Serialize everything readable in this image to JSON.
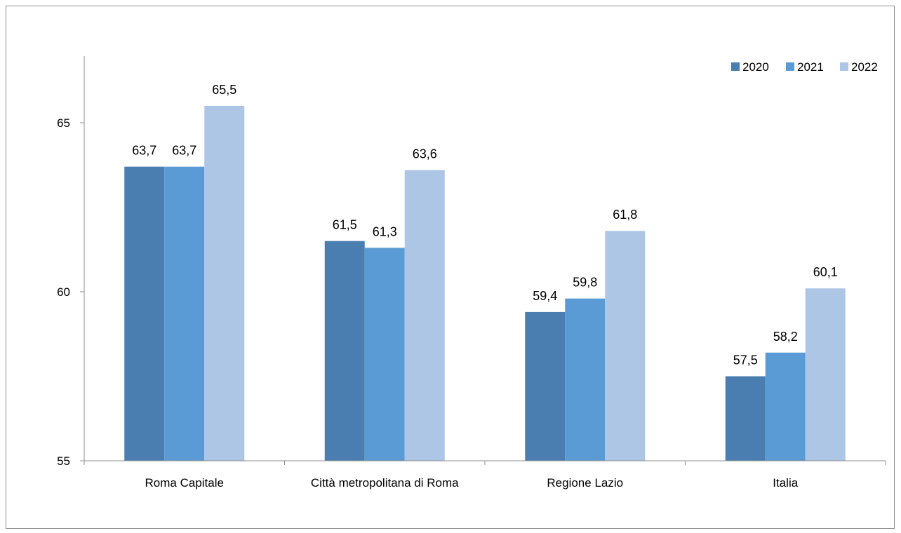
{
  "chart_data": {
    "type": "bar",
    "categories": [
      "Roma Capitale",
      "Città metropolitana di Roma",
      "Regione Lazio",
      "Italia"
    ],
    "series": [
      {
        "name": "2020",
        "values": [
          63.7,
          61.5,
          59.4,
          57.5
        ],
        "labels": [
          "63,7",
          "61,5",
          "59,4",
          "57,5"
        ],
        "color": "#4a7eb0"
      },
      {
        "name": "2021",
        "values": [
          63.7,
          61.3,
          59.8,
          58.2
        ],
        "labels": [
          "63,7",
          "61,3",
          "59,8",
          "58,2"
        ],
        "color": "#5b9bd5"
      },
      {
        "name": "2022",
        "values": [
          65.5,
          63.6,
          61.8,
          60.1
        ],
        "labels": [
          "65,5",
          "63,6",
          "61,8",
          "60,1"
        ],
        "color": "#adc6e6"
      }
    ],
    "ylim": [
      55,
      65
    ],
    "yticks": [
      55,
      60,
      65
    ],
    "title": "",
    "xlabel": "",
    "ylabel": "",
    "grid": false,
    "legend_position": "top-right"
  }
}
